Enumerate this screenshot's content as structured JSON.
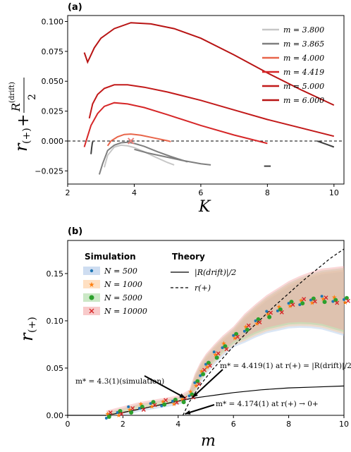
{
  "chart_data": [
    {
      "panel": "(a)",
      "type": "line",
      "xlabel": "K",
      "ylabel": "r(+) + R(drift)/2",
      "xlim": [
        2,
        10.3
      ],
      "ylim": [
        -0.036,
        0.105
      ],
      "xticks": [
        2,
        4,
        6,
        8,
        10
      ],
      "yticks": [
        -0.025,
        0.0,
        0.025,
        0.05,
        0.075,
        0.1
      ],
      "ytick_labels": [
        "−0.025",
        "0.000",
        "0.025",
        "0.050",
        "0.075",
        "0.100"
      ],
      "legend_position": "top-right",
      "reference_line": {
        "y": 0.0,
        "style": "dashed"
      },
      "series": [
        {
          "name": "m = 3.800",
          "color": "#c7c7c7",
          "x": [
            3.1,
            3.2,
            3.4,
            3.6,
            3.8,
            4.0,
            4.3,
            4.6,
            5.0,
            5.2
          ],
          "y": [
            -0.022,
            -0.012,
            -0.005,
            -0.0035,
            -0.004,
            -0.0055,
            -0.009,
            -0.013,
            -0.018,
            -0.02
          ]
        },
        {
          "name": "m = 3.865",
          "color": "#7f7f7f",
          "x": [
            2.95,
            3.05,
            3.2,
            3.4,
            3.6,
            3.8,
            4.0,
            4.3,
            4.7,
            5.1,
            5.6
          ],
          "y": [
            -0.028,
            -0.019,
            -0.008,
            -0.0035,
            -0.0015,
            -0.001,
            -0.002,
            -0.0045,
            -0.009,
            -0.013,
            -0.0175
          ]
        },
        {
          "name": "m = 4.000",
          "color": "#e8654a",
          "x": [
            3.2,
            3.3,
            3.5,
            3.7,
            3.9,
            4.2,
            4.6,
            5.0,
            5.1
          ],
          "y": [
            -0.004,
            0.0,
            0.0035,
            0.0055,
            0.0058,
            0.0048,
            0.0025,
            0.0002,
            -0.0005
          ]
        },
        {
          "name": "m = 4.419",
          "color": "#d62728",
          "x": [
            2.5,
            2.6,
            2.7,
            2.9,
            3.1,
            3.4,
            3.8,
            4.3,
            5.0,
            6.0,
            7.0,
            8.0
          ],
          "y": [
            -0.005,
            0.004,
            0.013,
            0.023,
            0.029,
            0.032,
            0.031,
            0.028,
            0.022,
            0.013,
            0.005,
            -0.002
          ]
        },
        {
          "name": "m = 5.000",
          "color": "#c21a1a",
          "x": [
            2.65,
            2.75,
            2.9,
            3.1,
            3.4,
            3.8,
            4.3,
            5.0,
            6.0,
            7.0,
            8.0,
            9.0,
            10.0
          ],
          "y": [
            0.019,
            0.031,
            0.039,
            0.044,
            0.047,
            0.047,
            0.045,
            0.041,
            0.034,
            0.026,
            0.018,
            0.011,
            0.004
          ]
        },
        {
          "name": "m = 6.000",
          "color": "#b81414",
          "x": [
            2.5,
            2.6,
            2.8,
            3.0,
            3.4,
            3.9,
            4.5,
            5.2,
            6.0,
            7.0,
            8.0,
            9.0,
            10.0
          ],
          "y": [
            0.074,
            0.066,
            0.078,
            0.086,
            0.094,
            0.099,
            0.098,
            0.094,
            0.086,
            0.072,
            0.057,
            0.043,
            0.03
          ]
        },
        {
          "name": "",
          "color": "#7f7f7f",
          "x": [
            4.0,
            4.4,
            4.9,
            5.4,
            6.0,
            6.3
          ],
          "y": [
            -0.007,
            -0.01,
            -0.013,
            -0.016,
            -0.019,
            -0.02
          ]
        },
        {
          "name": "",
          "color": "#404040",
          "x": [
            2.7,
            2.72,
            2.74,
            2.76
          ],
          "y": [
            -0.011,
            -0.006,
            -0.002,
            0.0
          ]
        },
        {
          "name": "",
          "color": "#404040",
          "x": [
            7.9,
            8.0,
            8.1
          ],
          "y": [
            -0.021,
            -0.021,
            -0.021
          ]
        },
        {
          "name": "",
          "color": "#404040",
          "x": [
            9.5,
            9.8,
            10.0
          ],
          "y": [
            0.0,
            -0.003,
            -0.005
          ]
        }
      ],
      "marker": {
        "x": 3.9,
        "y": 0.0,
        "symbol": "x",
        "color": "#e8807a"
      }
    },
    {
      "panel": "(b)",
      "type": "scatter",
      "xlabel": "m",
      "ylabel": "r(+)",
      "xlim": [
        0,
        10
      ],
      "ylim": [
        0,
        0.185
      ],
      "xticks": [
        0,
        2,
        4,
        6,
        8,
        10
      ],
      "yticks": [
        0.0,
        0.05,
        0.1,
        0.15
      ],
      "ytick_labels": [
        "0.00",
        "0.05",
        "0.10",
        "0.15"
      ],
      "legend_simulation_title": "Simulation",
      "legend_theory_title": "Theory",
      "simulation_series": [
        {
          "name": "N = 500",
          "color": "#1f77b4",
          "band": "#aec7e8",
          "marker": "circle"
        },
        {
          "name": "N = 1000",
          "color": "#ff7f0e",
          "band": "#ffcc99",
          "marker": "star"
        },
        {
          "name": "N = 5000",
          "color": "#2ca02c",
          "band": "#a8d8a0",
          "marker": "circle"
        },
        {
          "name": "N = 10000",
          "color": "#d62728",
          "band": "#f4a6a6",
          "marker": "x"
        }
      ],
      "sim_x": [
        1.4,
        1.8,
        2.2,
        2.6,
        3.0,
        3.4,
        3.8,
        4.1,
        4.4,
        4.6,
        4.8,
        5.0,
        5.3,
        5.6,
        6.0,
        6.4,
        6.8,
        7.2,
        7.6,
        8.0,
        8.4,
        8.8,
        9.2,
        9.6,
        10.0
      ],
      "sim_y": [
        0.0,
        0.003,
        0.006,
        0.009,
        0.011,
        0.013,
        0.015,
        0.017,
        0.022,
        0.033,
        0.045,
        0.054,
        0.064,
        0.073,
        0.083,
        0.092,
        0.1,
        0.107,
        0.112,
        0.117,
        0.12,
        0.122,
        0.123,
        0.122,
        0.121
      ],
      "theory_series": [
        {
          "name": "|R(drift)|/2",
          "style": "solid",
          "x": [
            0,
            1.4,
            2.0,
            2.5,
            3.0,
            3.5,
            4.0,
            4.5,
            5.0,
            5.5,
            6.0,
            7.0,
            8.0,
            9.0,
            10.0
          ],
          "y": [
            0.0,
            0.0,
            0.003,
            0.006,
            0.009,
            0.012,
            0.015,
            0.018,
            0.02,
            0.022,
            0.024,
            0.027,
            0.029,
            0.03,
            0.031
          ]
        },
        {
          "name": "r(+)",
          "style": "dashed",
          "x": [
            4.17,
            4.4,
            4.8,
            5.2,
            5.6,
            6.0,
            6.5,
            7.0,
            7.5,
            8.0,
            8.5,
            9.0,
            9.5,
            10.0
          ],
          "y": [
            0.0,
            0.014,
            0.032,
            0.047,
            0.06,
            0.073,
            0.088,
            0.102,
            0.116,
            0.129,
            0.142,
            0.154,
            0.166,
            0.176
          ]
        }
      ],
      "annotations": [
        {
          "text": "m* = 4.419(1) at r(+) = |R(drift)|/2",
          "point_x": 4.42,
          "point_y": 0.019
        },
        {
          "text": "m* = 4.3(1)(simulation)",
          "point_x": 4.3,
          "point_y": 0.017
        },
        {
          "text": "m* = 4.174(1) at r(+) → 0+",
          "point_x": 4.17,
          "point_y": 0.0
        }
      ]
    }
  ],
  "labels": {
    "panel_a": "(a)",
    "panel_b": "(b)"
  }
}
